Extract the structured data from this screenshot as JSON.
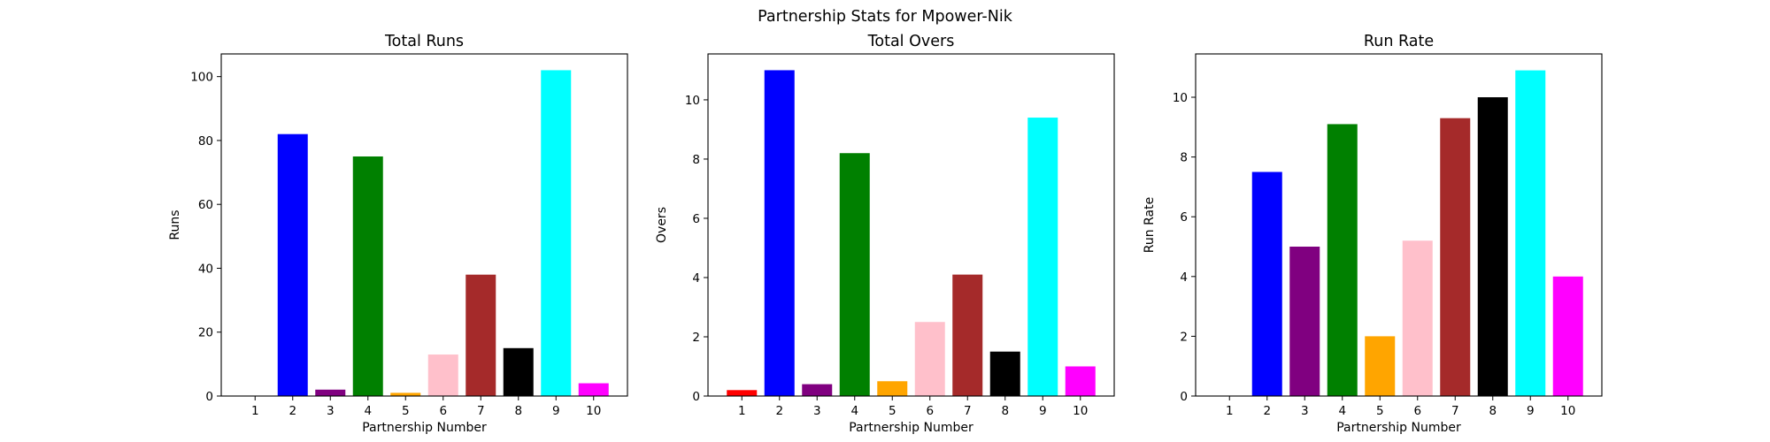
{
  "figure": {
    "title": "Partnership Stats for Mpower-Nik"
  },
  "chart_data": [
    {
      "type": "bar",
      "title": "Total Runs",
      "xlabel": "Partnership Number",
      "ylabel": "Runs",
      "categories": [
        "1",
        "2",
        "3",
        "4",
        "5",
        "6",
        "7",
        "8",
        "9",
        "10"
      ],
      "values": [
        0,
        82,
        2,
        75,
        1,
        13,
        38,
        15,
        102,
        4
      ],
      "colors": [
        "#ff0000",
        "#0000ff",
        "#800080",
        "#008000",
        "#ffa500",
        "#ffc0cb",
        "#a52a2a",
        "#000000",
        "#00ffff",
        "#ff00ff"
      ],
      "ylim": [
        0,
        107.1
      ],
      "yticks": [
        0,
        20,
        40,
        60,
        80,
        100
      ],
      "ytick_labels": [
        "0",
        "20",
        "40",
        "60",
        "80",
        "100"
      ],
      "grid": false
    },
    {
      "type": "bar",
      "title": "Total Overs",
      "xlabel": "Partnership Number",
      "ylabel": "Overs",
      "categories": [
        "1",
        "2",
        "3",
        "4",
        "5",
        "6",
        "7",
        "8",
        "9",
        "10"
      ],
      "values": [
        0.2,
        11.0,
        0.4,
        8.2,
        0.5,
        2.5,
        4.1,
        1.5,
        9.4,
        1.0
      ],
      "colors": [
        "#ff0000",
        "#0000ff",
        "#800080",
        "#008000",
        "#ffa500",
        "#ffc0cb",
        "#a52a2a",
        "#000000",
        "#00ffff",
        "#ff00ff"
      ],
      "ylim": [
        0,
        11.55
      ],
      "yticks": [
        0,
        2,
        4,
        6,
        8,
        10
      ],
      "ytick_labels": [
        "0",
        "2",
        "4",
        "6",
        "8",
        "10"
      ],
      "grid": false
    },
    {
      "type": "bar",
      "title": "Run Rate",
      "xlabel": "Partnership Number",
      "ylabel": "Run Rate",
      "categories": [
        "1",
        "2",
        "3",
        "4",
        "5",
        "6",
        "7",
        "8",
        "9",
        "10"
      ],
      "values": [
        0,
        7.5,
        5.0,
        9.1,
        2.0,
        5.2,
        9.3,
        10.0,
        10.9,
        4.0
      ],
      "colors": [
        "#ff0000",
        "#0000ff",
        "#800080",
        "#008000",
        "#ffa500",
        "#ffc0cb",
        "#a52a2a",
        "#000000",
        "#00ffff",
        "#ff00ff"
      ],
      "ylim": [
        0,
        11.45
      ],
      "yticks": [
        0,
        2,
        4,
        6,
        8,
        10
      ],
      "ytick_labels": [
        "0",
        "2",
        "4",
        "6",
        "8",
        "10"
      ],
      "grid": false
    }
  ]
}
